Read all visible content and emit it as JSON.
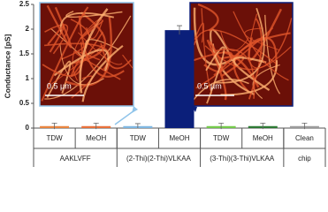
{
  "chart_data": {
    "type": "bar",
    "y_label": "Conductance [pS]",
    "categories": [
      "TDW",
      "MeOH",
      "TDW",
      "MeOH",
      "TDW",
      "MeOH",
      "Clean"
    ],
    "groups": [
      "AAKLVFF",
      "(2-Thi)(2-Thi)VLKAA",
      "(3-Thi)(3-Thi)VLKAA",
      "chip"
    ],
    "values": [
      0.04,
      0.04,
      0.04,
      1.98,
      0.04,
      0.04,
      0.04
    ],
    "errors": [
      0.06,
      0.06,
      0.05,
      0.09,
      0.06,
      0.06,
      0.06
    ],
    "colors": [
      "#e8843f",
      "#e8703a",
      "#7fb6e0",
      "#0b1f7a",
      "#73c94a",
      "#2d7a34",
      "#9a9a9a"
    ],
    "ylim": [
      0,
      2.5
    ],
    "yticks": [
      0,
      0.5,
      1,
      1.5,
      2,
      2.5
    ],
    "insets": [
      "0.5 µm",
      "0.5 µm"
    ]
  }
}
